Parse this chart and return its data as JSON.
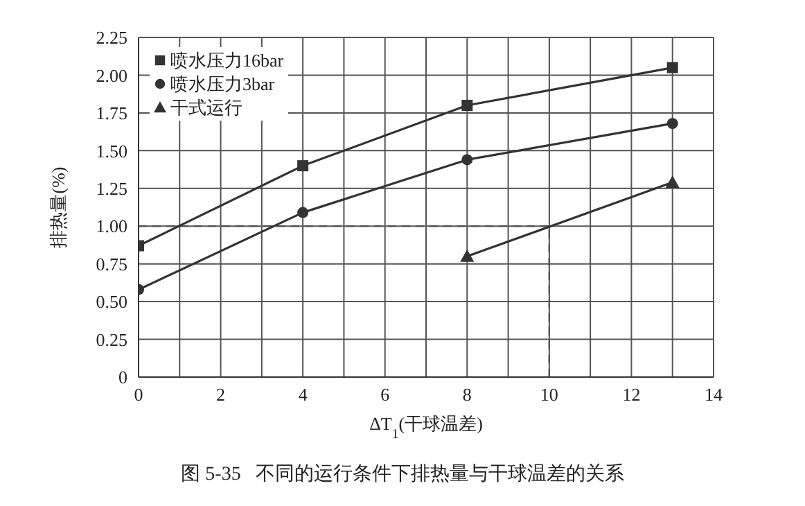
{
  "chart_data": {
    "type": "line",
    "title": "图 5-35   不同的运行条件下排热量与干球温差的关系",
    "xlabel": "ΔT$_{1}$(干球温差)",
    "ylabel": "排热量(%)",
    "x": [
      0,
      4,
      8,
      13
    ],
    "series": [
      {
        "name": "喷水压力16bar",
        "color": "#333333",
        "marker": "square",
        "values": [
          0.87,
          1.4,
          1.8,
          2.05
        ]
      },
      {
        "name": "喷水压力3bar",
        "color": "#333333",
        "marker": "circle",
        "values": [
          0.58,
          1.09,
          1.44,
          1.68
        ]
      },
      {
        "name": "干式运行",
        "color": "#333333",
        "marker": "triangle",
        "values": [
          null,
          null,
          0.8,
          1.29
        ]
      }
    ],
    "xlim": [
      0,
      14
    ],
    "xticks": [
      0,
      {
        "value": 1,
        "label": null
      },
      2,
      {
        "value": 3,
        "label": null
      },
      4,
      {
        "value": 5,
        "label": null
      },
      6,
      {
        "value": 7,
        "label": null
      },
      8,
      {
        "value": 9,
        "label": null
      },
      10,
      {
        "value": 11,
        "label": null
      },
      12,
      {
        "value": 13,
        "label": null
      },
      14
    ],
    "ylim": [
      0,
      2.25
    ],
    "yticks": [
      0,
      0.25,
      {
        "value": 0.5,
        "label": "0.50"
      },
      0.75,
      {
        "value": 1,
        "label": "1.00"
      },
      1.25,
      {
        "value": 1.5,
        "label": "1.50"
      },
      1.75,
      {
        "value": 2,
        "label": "2.00"
      },
      2.25
    ],
    "ref_lines": [
      {
        "axis": "y",
        "value": 1,
        "color": "#555555",
        "line_style": "dashed"
      },
      {
        "axis": "x",
        "value": 10,
        "color": "#555555",
        "line_style": "dashed"
      }
    ],
    "grid": true,
    "legend": "top left",
    "line_style": "solid"
  }
}
